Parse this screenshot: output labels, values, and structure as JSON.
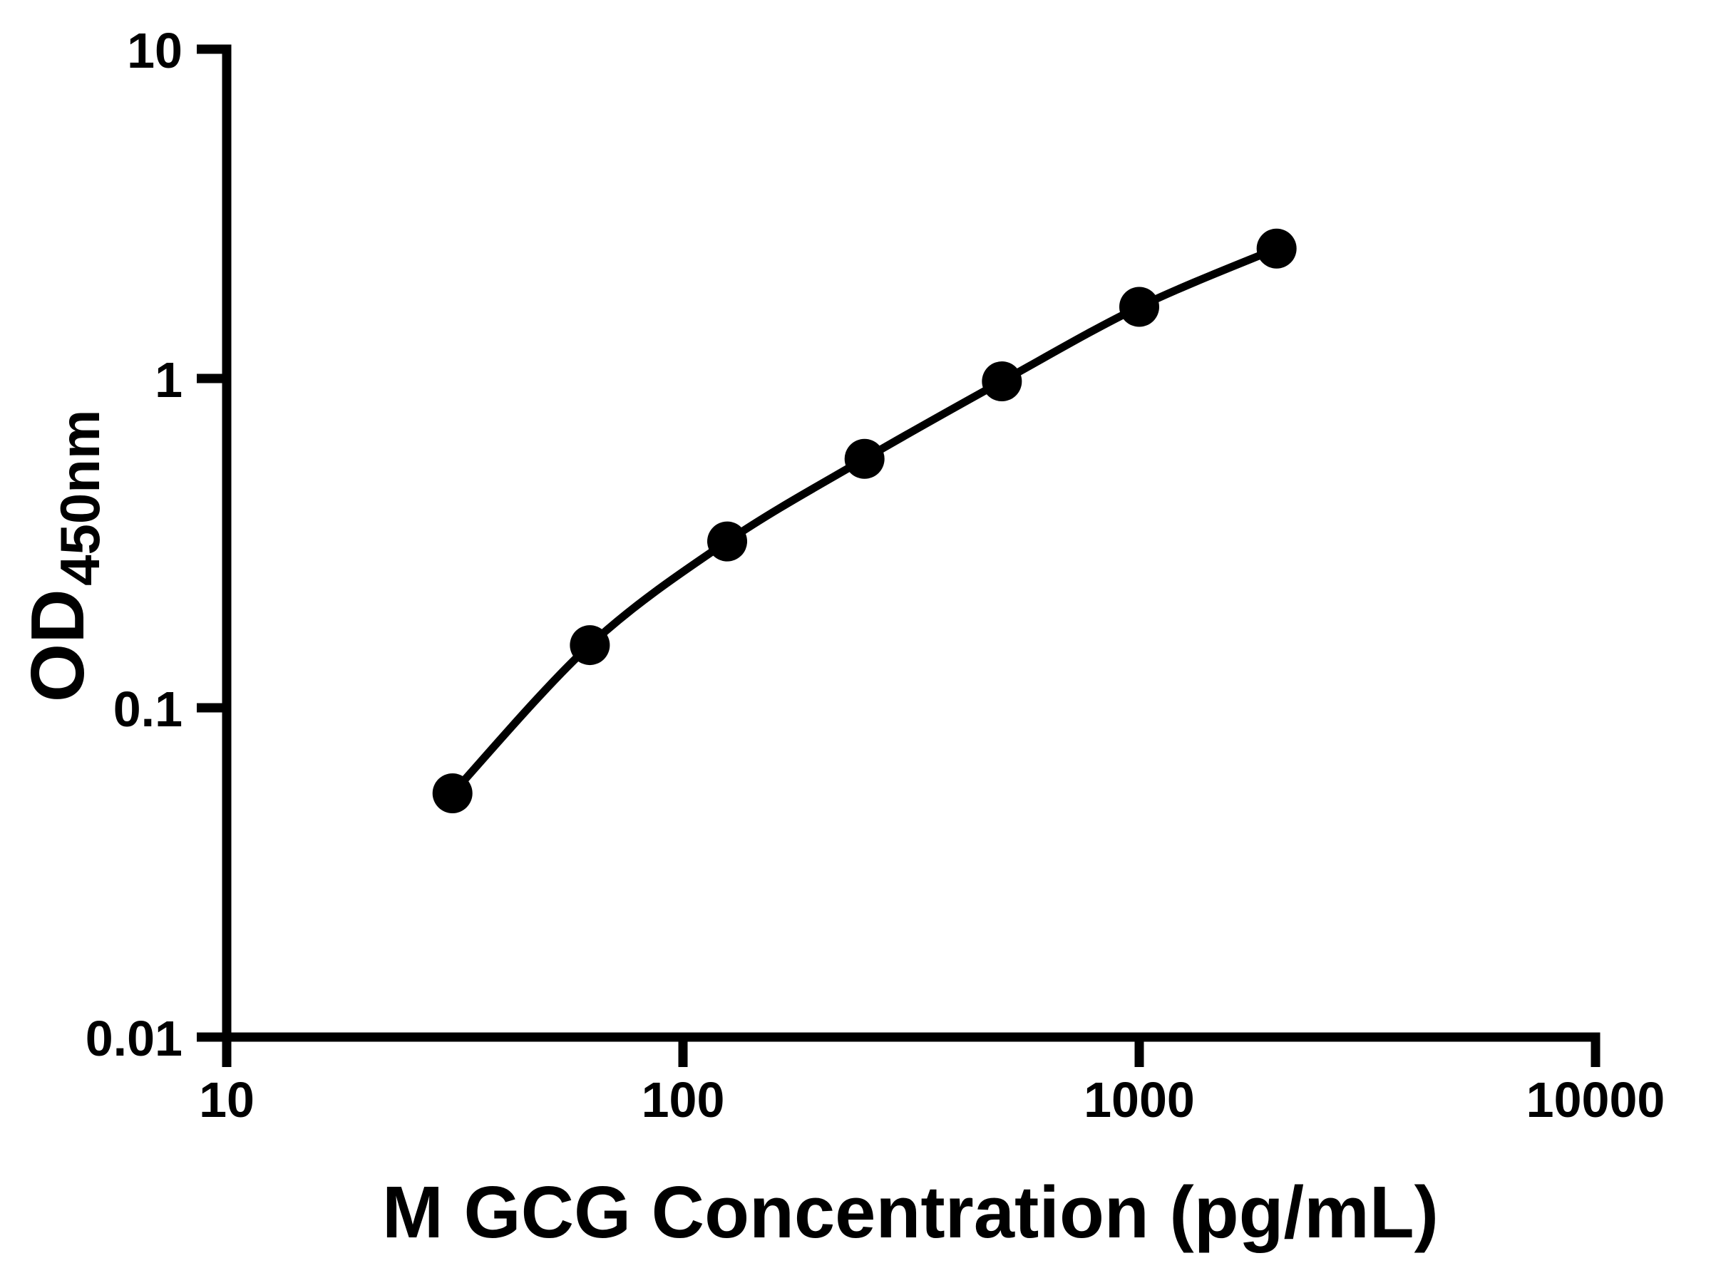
{
  "figure": {
    "background_color": "#ffffff",
    "foreground_color": "#000000"
  },
  "chart_data": {
    "type": "line",
    "title": "",
    "xlabel": "M GCG Concentration (pg/mL)",
    "ylabel": "OD450nm",
    "ylabel_main": "OD",
    "ylabel_sub": "450nm",
    "xscale": "log",
    "yscale": "log",
    "xlim": [
      10,
      10000
    ],
    "ylim": [
      0.01,
      10
    ],
    "grid": false,
    "legend": false,
    "x_ticks": [
      {
        "value": 10,
        "label": "10"
      },
      {
        "value": 100,
        "label": "100"
      },
      {
        "value": 1000,
        "label": "1000"
      },
      {
        "value": 10000,
        "label": "10000"
      }
    ],
    "y_ticks": [
      {
        "value": 0.01,
        "label": "0.01"
      },
      {
        "value": 0.1,
        "label": "0.1"
      },
      {
        "value": 1,
        "label": "1"
      },
      {
        "value": 10,
        "label": "10"
      }
    ],
    "series": [
      {
        "marker": "circle",
        "line": "smooth",
        "color": "#000000",
        "points": [
          {
            "x": 31.25,
            "y": 0.055
          },
          {
            "x": 62.5,
            "y": 0.155
          },
          {
            "x": 125,
            "y": 0.32
          },
          {
            "x": 250,
            "y": 0.57
          },
          {
            "x": 500,
            "y": 0.98
          },
          {
            "x": 1000,
            "y": 1.65
          },
          {
            "x": 2000,
            "y": 2.48
          }
        ]
      }
    ]
  }
}
